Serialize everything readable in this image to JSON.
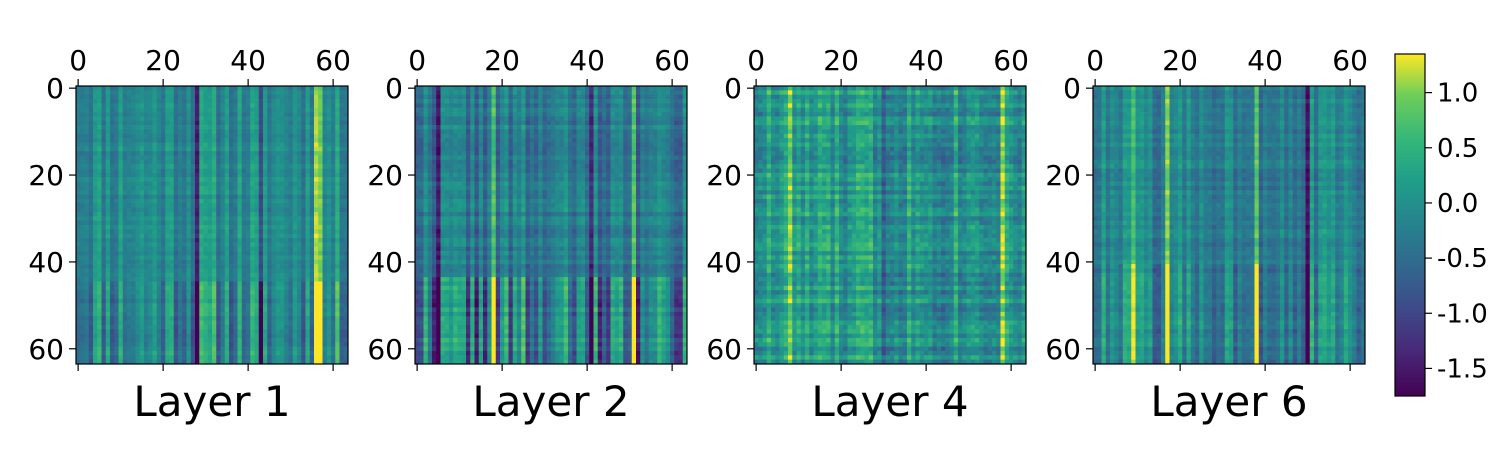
{
  "chart_data": [
    {
      "type": "heatmap",
      "title": "Layer 1",
      "xlim": [
        0,
        63
      ],
      "ylim": [
        63,
        0
      ],
      "x_ticks": [
        "0",
        "20",
        "40",
        "60"
      ],
      "y_ticks": [
        "0",
        "20",
        "40",
        "60"
      ],
      "description_note": ""
    },
    {
      "type": "heatmap",
      "title": "Layer 2",
      "xlim": [
        0,
        63
      ],
      "ylim": [
        63,
        0
      ],
      "x_ticks": [
        "0",
        "20",
        "40",
        "60"
      ],
      "y_ticks": [
        "0",
        "20",
        "40",
        "60"
      ]
    },
    {
      "type": "heatmap",
      "title": "Layer 4",
      "xlim": [
        0,
        63
      ],
      "ylim": [
        63,
        0
      ],
      "x_ticks": [
        "0",
        "20",
        "40",
        "60"
      ],
      "y_ticks": [
        "0",
        "20",
        "40",
        "60"
      ]
    },
    {
      "type": "heatmap",
      "title": "Layer 6",
      "xlim": [
        0,
        63
      ],
      "ylim": [
        63,
        0
      ],
      "x_ticks": [
        "0",
        "20",
        "40",
        "60"
      ],
      "y_ticks": [
        "0",
        "20",
        "40",
        "60"
      ]
    }
  ],
  "colorbar": {
    "colormap": "viridis",
    "range": [
      -1.75,
      1.35
    ],
    "ticks": [
      {
        "value": 1.0,
        "label": "1.0"
      },
      {
        "value": 0.5,
        "label": "0.5"
      },
      {
        "value": 0.0,
        "label": "0.0"
      },
      {
        "value": -0.5,
        "label": "-0.5"
      },
      {
        "value": -1.0,
        "label": "-1.0"
      },
      {
        "value": -1.5,
        "label": "-1.5"
      }
    ]
  }
}
